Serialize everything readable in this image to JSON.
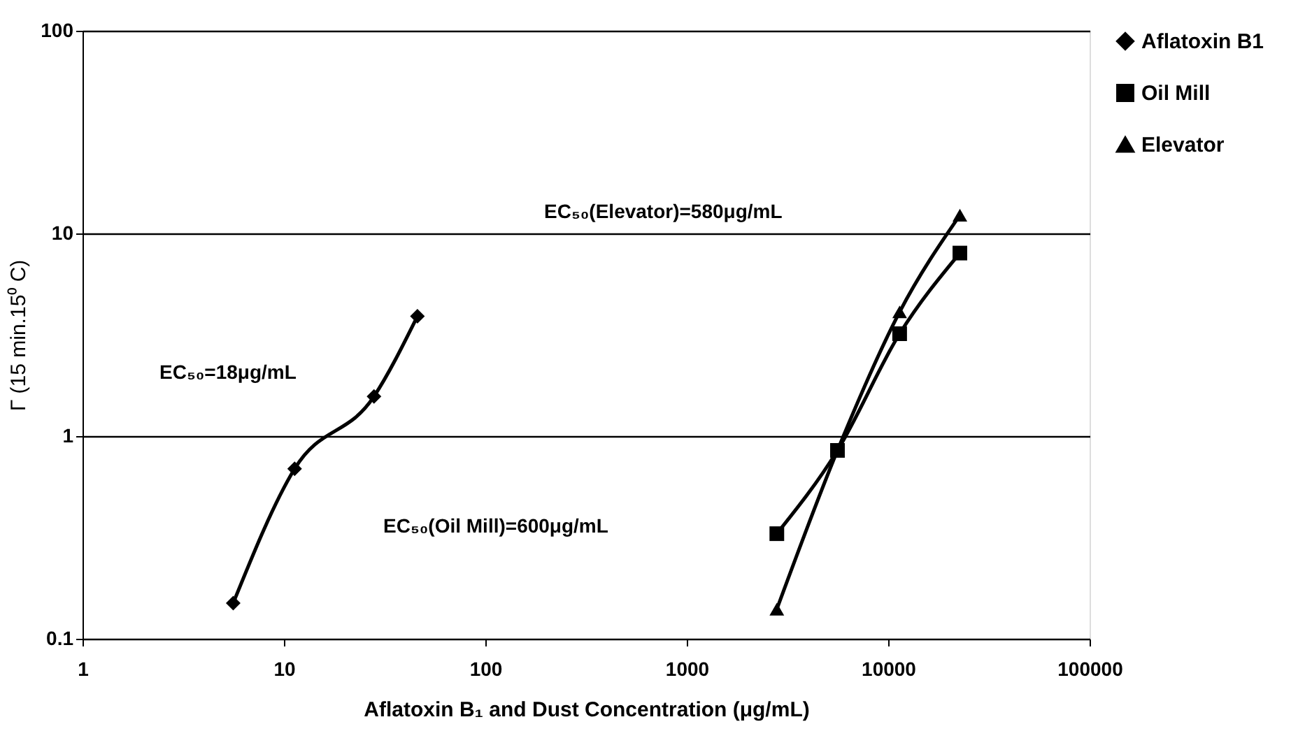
{
  "chart_data": {
    "type": "line",
    "xlabel": "Aflatoxin B₁ and Dust Concentration (μg/mL)",
    "ylabel": "Γ (15 min.15⁰ C)",
    "annotations": [
      "EC₅₀(Elevator)=580μg/mL",
      "EC₅₀=18μg/mL",
      "EC₅₀(Oil Mill)=600μg/mL"
    ],
    "log": "xy",
    "xlim": [
      1,
      100000
    ],
    "xticks": [
      1,
      10,
      100,
      1000,
      10000,
      100000
    ],
    "ylim": [
      0.1,
      100
    ],
    "yticks": [
      0.1,
      1,
      10,
      100
    ],
    "grid": "y",
    "legend": "right",
    "line_style": "solid",
    "series": [
      {
        "name": "Aflatoxin B1",
        "color": "#000000",
        "marker": "diamond",
        "x": [
          5.6,
          11.3,
          28,
          46
        ],
        "values": [
          0.15,
          0.69,
          1.57,
          3.9
        ]
      },
      {
        "name": "Oil Mill",
        "color": "#000000",
        "marker": "square",
        "x": [
          2800,
          5600,
          11400,
          22700
        ],
        "values": [
          0.33,
          0.85,
          3.2,
          8.0
        ]
      },
      {
        "name": "Elevator",
        "color": "#000000",
        "marker": "triangle",
        "x": [
          2800,
          5600,
          11400,
          22700
        ],
        "values": [
          0.14,
          0.85,
          4.1,
          12.3
        ]
      }
    ]
  }
}
